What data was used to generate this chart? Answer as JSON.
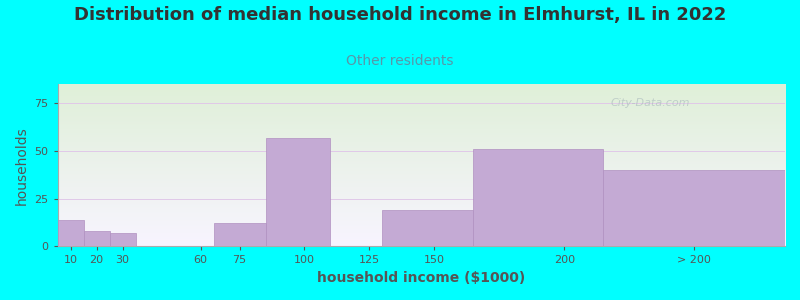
{
  "title": "Distribution of median household income in Elmhurst, IL in 2022",
  "subtitle": "Other residents",
  "xlabel": "household income ($1000)",
  "ylabel": "households",
  "background_color": "#00FFFF",
  "plot_bg_gradient_top": "#dff0d8",
  "plot_bg_gradient_bottom": "#f8f4ff",
  "bar_color": "#c4aad4",
  "bar_edge_color": "#b090c0",
  "grid_color": "#e0c8e8",
  "subtitle_color": "#5599aa",
  "values": [
    14,
    8,
    7,
    0,
    12,
    57,
    0,
    19,
    51,
    40
  ],
  "bar_lefts": [
    5,
    15,
    25,
    40,
    65,
    85,
    110,
    130,
    165,
    215
  ],
  "bar_rights": [
    15,
    25,
    35,
    65,
    85,
    110,
    130,
    165,
    215,
    285
  ],
  "xlim": [
    5,
    285
  ],
  "ylim": [
    0,
    85
  ],
  "yticks": [
    0,
    25,
    50,
    75
  ],
  "xtick_labels": [
    "10",
    "20",
    "30",
    "60",
    "75",
    "100",
    "125",
    "150",
    "200",
    "> 200"
  ],
  "xtick_positions": [
    10,
    20,
    30,
    60,
    75,
    100,
    125,
    150,
    200,
    250
  ],
  "title_fontsize": 13,
  "subtitle_fontsize": 10,
  "axis_label_fontsize": 10,
  "tick_fontsize": 8,
  "watermark": "City-Data.com"
}
